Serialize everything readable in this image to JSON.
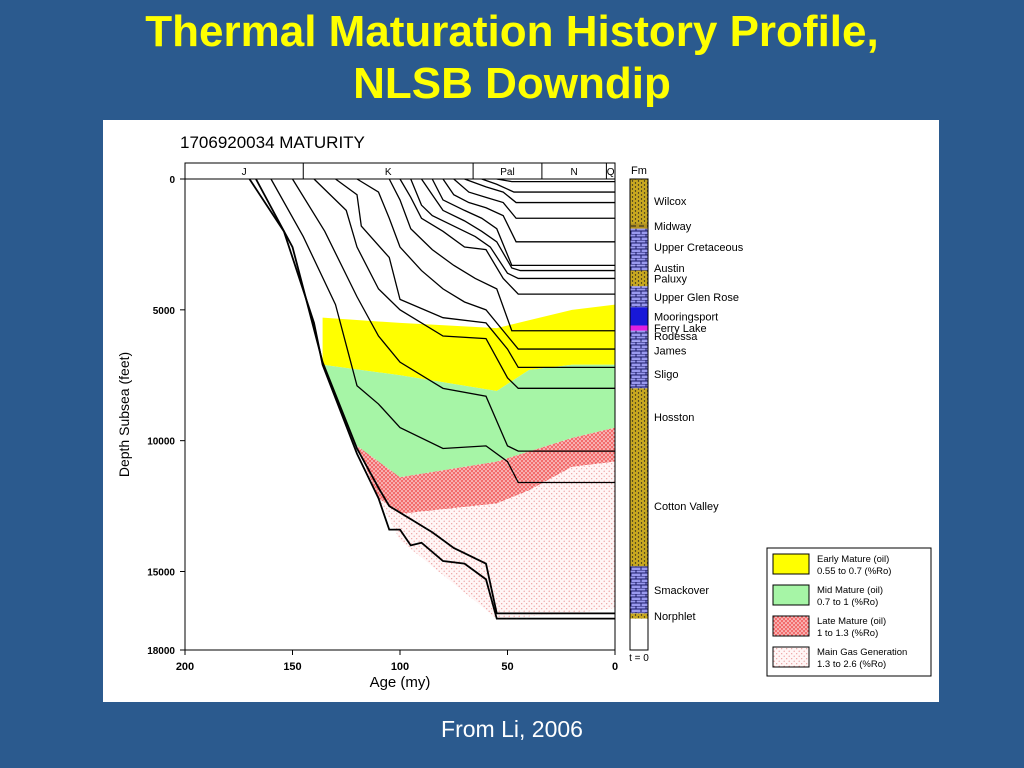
{
  "slide": {
    "title_line1": "Thermal Maturation History Profile,",
    "title_line2": "NLSB Downdip",
    "caption": "From Li, 2006"
  },
  "chart_data": {
    "type": "area",
    "title": "1706920034 MATURITY",
    "xlabel": "Age (my)",
    "ylabel": "Depth Subsea (feet)",
    "xlim": [
      200,
      0
    ],
    "ylim": [
      0,
      18000
    ],
    "x_ticks": [
      200,
      150,
      100,
      50,
      0
    ],
    "y_ticks": [
      0,
      5000,
      10000,
      15000,
      18000
    ],
    "periods": [
      {
        "label": "J",
        "from": 200,
        "to": 145
      },
      {
        "label": "K",
        "from": 145,
        "to": 66
      },
      {
        "label": "Pal",
        "from": 66,
        "to": 34
      },
      {
        "label": "N",
        "from": 34,
        "to": 4
      },
      {
        "label": "Q",
        "from": 4,
        "to": 0
      }
    ],
    "maturity_zones": [
      {
        "name": "Early Mature (oil)",
        "range": "0.55 to 0.7 (%Ro)",
        "color": "#ffff00",
        "top": [
          [
            136,
            5300
          ],
          [
            100,
            5500
          ],
          [
            55,
            5700
          ],
          [
            40,
            5400
          ],
          [
            20,
            5000
          ],
          [
            0,
            4800
          ]
        ],
        "bottom": [
          [
            136,
            7100
          ],
          [
            100,
            7500
          ],
          [
            55,
            8100
          ],
          [
            40,
            7300
          ],
          [
            20,
            7100
          ],
          [
            0,
            7100
          ]
        ]
      },
      {
        "name": "Mid Mature (oil)",
        "range": "0.7 to 1 (%Ro)",
        "color": "#a6f5a6",
        "top": [
          [
            136,
            7100
          ],
          [
            100,
            7500
          ],
          [
            55,
            8100
          ],
          [
            40,
            7300
          ],
          [
            20,
            7100
          ],
          [
            0,
            7100
          ]
        ],
        "bottom": [
          [
            120,
            10200
          ],
          [
            100,
            11400
          ],
          [
            55,
            10800
          ],
          [
            20,
            9900
          ],
          [
            0,
            9500
          ]
        ]
      },
      {
        "name": "Late Mature (oil)",
        "range": "1 to 1.3 (%Ro)",
        "color": "#f08080",
        "top": [
          [
            120,
            10200
          ],
          [
            100,
            11400
          ],
          [
            55,
            10800
          ],
          [
            20,
            9900
          ],
          [
            0,
            9500
          ]
        ],
        "bottom": [
          [
            110,
            12200
          ],
          [
            100,
            12800
          ],
          [
            55,
            12400
          ],
          [
            40,
            11900
          ],
          [
            20,
            11000
          ],
          [
            0,
            10800
          ]
        ]
      },
      {
        "name": "Main Gas Generation",
        "range": "1.3 to 2.6 (%Ro)",
        "color": "#ffd6d6",
        "top": [
          [
            110,
            12200
          ],
          [
            100,
            12800
          ],
          [
            55,
            12400
          ],
          [
            40,
            11900
          ],
          [
            20,
            11000
          ],
          [
            0,
            10800
          ]
        ],
        "bottom": [
          [
            100,
            13800
          ],
          [
            55,
            16800
          ],
          [
            20,
            16600
          ],
          [
            0,
            16400
          ]
        ]
      }
    ],
    "formations": [
      {
        "name": "Wilcox",
        "top": 0,
        "bottom": 1700,
        "lithology": "sandstone"
      },
      {
        "name": "Midway",
        "top": 1700,
        "bottom": 1900,
        "lithology": "shale"
      },
      {
        "name": "Upper Cretaceous",
        "top": 1900,
        "bottom": 3300,
        "lithology": "limestone"
      },
      {
        "name": "Austin",
        "top": 3300,
        "bottom": 3500,
        "lithology": "limestone"
      },
      {
        "name": "Paluxy",
        "top": 3500,
        "bottom": 4100,
        "lithology": "sandstone"
      },
      {
        "name": "Upper Glen Rose",
        "top": 4100,
        "bottom": 4900,
        "lithology": "limestone"
      },
      {
        "name": "Mooringsport",
        "top": 4900,
        "bottom": 5600,
        "lithology": "dolomite"
      },
      {
        "name": "Ferry Lake",
        "top": 5600,
        "bottom": 5800,
        "lithology": "anhydrite"
      },
      {
        "name": "Rodessa",
        "top": 5800,
        "bottom": 6200,
        "lithology": "limestone"
      },
      {
        "name": "James",
        "top": 6200,
        "bottom": 6900,
        "lithology": "limestone"
      },
      {
        "name": "Sligo",
        "top": 6900,
        "bottom": 8000,
        "lithology": "limestone"
      },
      {
        "name": "Hosston",
        "top": 8000,
        "bottom": 10200,
        "lithology": "sandstone"
      },
      {
        "name": "Cotton Valley",
        "top": 10200,
        "bottom": 14800,
        "lithology": "sandstone"
      },
      {
        "name": "Smackover",
        "top": 14800,
        "bottom": 16600,
        "lithology": "limestone"
      },
      {
        "name": "Norphlet",
        "top": 16600,
        "bottom": 16800,
        "lithology": "sandstone"
      }
    ],
    "formation_column_title": "Fm",
    "time_label": "t = 0",
    "burial_curves": [
      [
        [
          170,
          0
        ],
        [
          154,
          2000
        ],
        [
          140,
          5500
        ],
        [
          136,
          7100
        ],
        [
          120,
          10500
        ],
        [
          110,
          12200
        ],
        [
          105,
          13400
        ],
        [
          100,
          13400
        ],
        [
          95,
          14000
        ],
        [
          90,
          13900
        ],
        [
          80,
          14600
        ],
        [
          70,
          14700
        ],
        [
          60,
          15300
        ],
        [
          55,
          16800
        ],
        [
          0,
          16800
        ]
      ],
      [
        [
          167,
          0
        ],
        [
          150,
          2600
        ],
        [
          136,
          7000
        ],
        [
          120,
          10300
        ],
        [
          110,
          11800
        ],
        [
          105,
          12500
        ],
        [
          95,
          13000
        ],
        [
          85,
          13500
        ],
        [
          75,
          14100
        ],
        [
          60,
          14700
        ],
        [
          55,
          16600
        ],
        [
          0,
          16600
        ]
      ],
      [
        [
          160,
          0
        ],
        [
          145,
          2200
        ],
        [
          130,
          4800
        ],
        [
          120,
          7900
        ],
        [
          110,
          8600
        ],
        [
          100,
          9500
        ],
        [
          80,
          10300
        ],
        [
          60,
          10200
        ],
        [
          50,
          10800
        ],
        [
          45,
          11600
        ],
        [
          0,
          11600
        ]
      ],
      [
        [
          150,
          0
        ],
        [
          135,
          2000
        ],
        [
          120,
          4500
        ],
        [
          110,
          6000
        ],
        [
          100,
          7000
        ],
        [
          80,
          8000
        ],
        [
          60,
          8300
        ],
        [
          50,
          10200
        ],
        [
          45,
          10400
        ],
        [
          0,
          10400
        ]
      ],
      [
        [
          140,
          0
        ],
        [
          125,
          1200
        ],
        [
          120,
          2600
        ],
        [
          110,
          4200
        ],
        [
          100,
          5000
        ],
        [
          80,
          6000
        ],
        [
          60,
          6100
        ],
        [
          50,
          7600
        ],
        [
          45,
          8000
        ],
        [
          0,
          8000
        ]
      ],
      [
        [
          130,
          0
        ],
        [
          120,
          600
        ],
        [
          118,
          1800
        ],
        [
          105,
          3000
        ],
        [
          100,
          4600
        ],
        [
          80,
          5300
        ],
        [
          60,
          5500
        ],
        [
          50,
          6500
        ],
        [
          45,
          7200
        ],
        [
          0,
          7200
        ]
      ],
      [
        [
          120,
          0
        ],
        [
          110,
          500
        ],
        [
          105,
          1500
        ],
        [
          100,
          2600
        ],
        [
          90,
          3500
        ],
        [
          80,
          4200
        ],
        [
          70,
          4700
        ],
        [
          60,
          5000
        ],
        [
          50,
          6000
        ],
        [
          45,
          6500
        ],
        [
          0,
          6500
        ]
      ],
      [
        [
          105,
          0
        ],
        [
          100,
          800
        ],
        [
          95,
          1900
        ],
        [
          85,
          2700
        ],
        [
          75,
          3300
        ],
        [
          65,
          3800
        ],
        [
          55,
          4200
        ],
        [
          48,
          5800
        ],
        [
          0,
          5800
        ]
      ],
      [
        [
          100,
          0
        ],
        [
          95,
          700
        ],
        [
          90,
          1500
        ],
        [
          80,
          2000
        ],
        [
          70,
          2600
        ],
        [
          60,
          2700
        ],
        [
          52,
          3800
        ],
        [
          45,
          4400
        ],
        [
          0,
          4400
        ]
      ],
      [
        [
          95,
          0
        ],
        [
          90,
          1000
        ],
        [
          85,
          1400
        ],
        [
          75,
          1800
        ],
        [
          65,
          2200
        ],
        [
          58,
          2600
        ],
        [
          50,
          3600
        ],
        [
          45,
          3800
        ],
        [
          0,
          3800
        ]
      ],
      [
        [
          90,
          0
        ],
        [
          85,
          600
        ],
        [
          80,
          1200
        ],
        [
          70,
          1600
        ],
        [
          62,
          2000
        ],
        [
          55,
          2400
        ],
        [
          48,
          3400
        ],
        [
          44,
          3500
        ],
        [
          0,
          3500
        ]
      ],
      [
        [
          85,
          0
        ],
        [
          80,
          800
        ],
        [
          70,
          1200
        ],
        [
          62,
          1500
        ],
        [
          55,
          1900
        ],
        [
          48,
          3300
        ],
        [
          0,
          3300
        ]
      ],
      [
        [
          80,
          0
        ],
        [
          75,
          600
        ],
        [
          68,
          900
        ],
        [
          60,
          1100
        ],
        [
          52,
          1400
        ],
        [
          46,
          2400
        ],
        [
          0,
          2400
        ]
      ],
      [
        [
          75,
          0
        ],
        [
          68,
          500
        ],
        [
          60,
          700
        ],
        [
          52,
          900
        ],
        [
          46,
          1500
        ],
        [
          0,
          1500
        ]
      ],
      [
        [
          70,
          0
        ],
        [
          60,
          300
        ],
        [
          52,
          500
        ],
        [
          46,
          900
        ],
        [
          0,
          900
        ]
      ],
      [
        [
          62,
          0
        ],
        [
          55,
          200
        ],
        [
          47,
          500
        ],
        [
          0,
          500
        ]
      ],
      [
        [
          55,
          0
        ],
        [
          48,
          100
        ],
        [
          0,
          100
        ]
      ]
    ]
  }
}
